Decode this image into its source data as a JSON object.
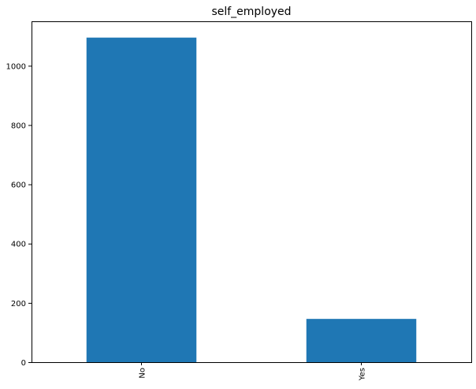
{
  "chart_data": {
    "type": "bar",
    "title": "self_employed",
    "xlabel": "",
    "ylabel": "",
    "categories": [
      "No",
      "Yes"
    ],
    "values": [
      1095,
      146
    ],
    "ylim": [
      0,
      1150
    ],
    "yticks": [
      0,
      200,
      400,
      600,
      800,
      1000
    ],
    "grid": false,
    "legend": "none",
    "bar_color": "#1f77b4"
  }
}
